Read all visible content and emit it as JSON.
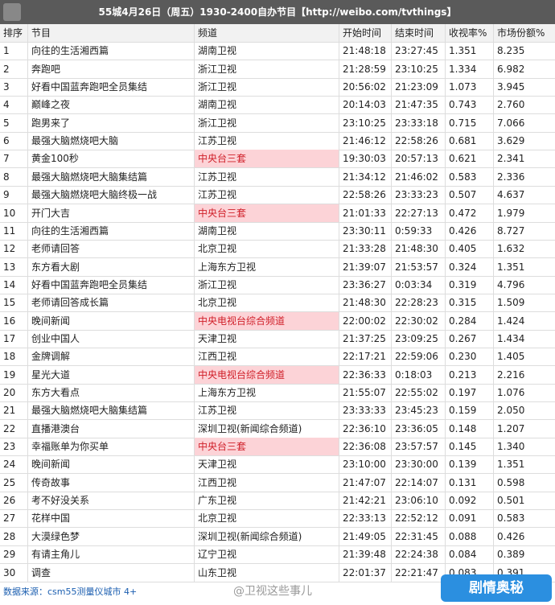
{
  "header": {
    "title": "55城4月26日（周五）1930-2400自办节目【http://weibo.com/tvthings】"
  },
  "table": {
    "columns": [
      "排序",
      "节目",
      "频道",
      "开始时间",
      "结束时间",
      "收视率%",
      "市场份额%"
    ],
    "rows": [
      {
        "cells": [
          "1",
          "向往的生活湘西篇",
          "湖南卫视",
          "21:48:18",
          "23:27:45",
          "1.351",
          "8.235"
        ]
      },
      {
        "cells": [
          "2",
          "奔跑吧",
          "浙江卫视",
          "21:28:59",
          "23:10:25",
          "1.334",
          "6.982"
        ]
      },
      {
        "cells": [
          "3",
          "好看中国蓝奔跑吧全员集结",
          "浙江卫视",
          "20:56:02",
          "21:23:09",
          "1.073",
          "3.945"
        ]
      },
      {
        "cells": [
          "4",
          "巅峰之夜",
          "湖南卫视",
          "20:14:03",
          "21:47:35",
          "0.743",
          "2.760"
        ]
      },
      {
        "cells": [
          "5",
          "跑男来了",
          "浙江卫视",
          "23:10:25",
          "23:33:18",
          "0.715",
          "7.066"
        ]
      },
      {
        "cells": [
          "6",
          "最强大脑燃烧吧大脑",
          "江苏卫视",
          "21:46:12",
          "22:58:26",
          "0.681",
          "3.629"
        ]
      },
      {
        "cells": [
          "7",
          "黄金100秒",
          "中央台三套",
          "19:30:03",
          "20:57:13",
          "0.621",
          "2.341"
        ],
        "highlight": true
      },
      {
        "cells": [
          "8",
          "最强大脑燃烧吧大脑集结篇",
          "江苏卫视",
          "21:34:12",
          "21:46:02",
          "0.583",
          "2.336"
        ]
      },
      {
        "cells": [
          "9",
          "最强大脑燃烧吧大脑终极一战",
          "江苏卫视",
          "22:58:26",
          "23:33:23",
          "0.507",
          "4.637"
        ]
      },
      {
        "cells": [
          "10",
          "开门大吉",
          "中央台三套",
          "21:01:33",
          "22:27:13",
          "0.472",
          "1.979"
        ],
        "highlight": true
      },
      {
        "cells": [
          "11",
          "向往的生活湘西篇",
          "湖南卫视",
          "23:30:11",
          "0:59:33",
          "0.426",
          "8.727"
        ]
      },
      {
        "cells": [
          "12",
          "老师请回答",
          "北京卫视",
          "21:33:28",
          "21:48:30",
          "0.405",
          "1.632"
        ]
      },
      {
        "cells": [
          "13",
          "东方看大剧",
          "上海东方卫视",
          "21:39:07",
          "21:53:57",
          "0.324",
          "1.351"
        ]
      },
      {
        "cells": [
          "14",
          "好看中国蓝奔跑吧全员集结",
          "浙江卫视",
          "23:36:27",
          "0:03:34",
          "0.319",
          "4.796"
        ]
      },
      {
        "cells": [
          "15",
          "老师请回答成长篇",
          "北京卫视",
          "21:48:30",
          "22:28:23",
          "0.315",
          "1.509"
        ]
      },
      {
        "cells": [
          "16",
          "晚间新闻",
          "中央电视台综合频道",
          "22:00:02",
          "22:30:02",
          "0.284",
          "1.424"
        ],
        "highlight": true
      },
      {
        "cells": [
          "17",
          "创业中国人",
          "天津卫视",
          "21:37:25",
          "23:09:25",
          "0.267",
          "1.434"
        ]
      },
      {
        "cells": [
          "18",
          "金牌调解",
          "江西卫视",
          "22:17:21",
          "22:59:06",
          "0.230",
          "1.405"
        ]
      },
      {
        "cells": [
          "19",
          "星光大道",
          "中央电视台综合频道",
          "22:36:33",
          "0:18:03",
          "0.213",
          "2.216"
        ],
        "highlight": true
      },
      {
        "cells": [
          "20",
          "东方大看点",
          "上海东方卫视",
          "21:55:07",
          "22:55:02",
          "0.197",
          "1.076"
        ]
      },
      {
        "cells": [
          "21",
          "最强大脑燃烧吧大脑集结篇",
          "江苏卫视",
          "23:33:33",
          "23:45:23",
          "0.159",
          "2.050"
        ]
      },
      {
        "cells": [
          "22",
          "直播港澳台",
          "深圳卫视(新闻综合频道)",
          "22:36:10",
          "23:36:05",
          "0.148",
          "1.207"
        ]
      },
      {
        "cells": [
          "23",
          "幸福账单为你买单",
          "中央台三套",
          "22:36:08",
          "23:57:57",
          "0.145",
          "1.340"
        ],
        "highlight": true
      },
      {
        "cells": [
          "24",
          "晚间新闻",
          "天津卫视",
          "23:10:00",
          "23:30:00",
          "0.139",
          "1.351"
        ]
      },
      {
        "cells": [
          "25",
          "传奇故事",
          "江西卫视",
          "21:47:07",
          "22:14:07",
          "0.131",
          "0.598"
        ]
      },
      {
        "cells": [
          "26",
          "考不好没关系",
          "广东卫视",
          "21:42:21",
          "23:06:10",
          "0.092",
          "0.501"
        ]
      },
      {
        "cells": [
          "27",
          "花样中国",
          "北京卫视",
          "22:33:13",
          "22:52:12",
          "0.091",
          "0.583"
        ]
      },
      {
        "cells": [
          "28",
          "大漠绿色梦",
          "深圳卫视(新闻综合频道)",
          "21:49:05",
          "22:31:45",
          "0.088",
          "0.426"
        ]
      },
      {
        "cells": [
          "29",
          "有请主角儿",
          "辽宁卫视",
          "21:39:48",
          "22:24:38",
          "0.084",
          "0.389"
        ]
      },
      {
        "cells": [
          "30",
          "调查",
          "山东卫视",
          "22:01:37",
          "22:21:47",
          "0.083",
          "0.391"
        ]
      }
    ]
  },
  "footer": {
    "source": "数据来源：csm55测量仪城市 4+",
    "watermark": "@卫视这些事儿",
    "logo": "剧情奥秘"
  }
}
